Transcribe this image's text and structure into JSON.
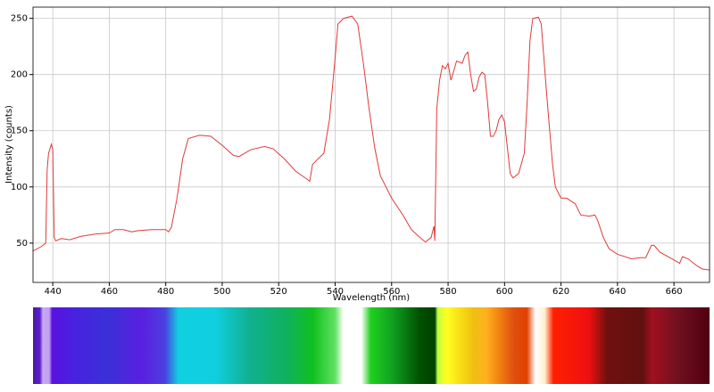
{
  "chart_data": {
    "type": "line",
    "xlabel": "Wavelength (nm)",
    "ylabel": "Intensity (counts)",
    "x": [
      433,
      436,
      437.5,
      438,
      438.5,
      439.5,
      440,
      440.5,
      441,
      443,
      446,
      450,
      455,
      460,
      462,
      465,
      468,
      470,
      475,
      480,
      481,
      482,
      484,
      486,
      488,
      492,
      496,
      500,
      504,
      506,
      510,
      515,
      518,
      522,
      526,
      530,
      531,
      532,
      534,
      536,
      538,
      540,
      541,
      543,
      546,
      548,
      550,
      552,
      554,
      556,
      560,
      564,
      567,
      570,
      572,
      574,
      575,
      575.3,
      576,
      577,
      578,
      579,
      580,
      581,
      582,
      583,
      585,
      586,
      587,
      588,
      589,
      590,
      591,
      592,
      593,
      594,
      595,
      596,
      597,
      598,
      599,
      600,
      601,
      602,
      603,
      605,
      607,
      608,
      609,
      610,
      612,
      613,
      615,
      617,
      618,
      620,
      622,
      625,
      627,
      630,
      632,
      633,
      635,
      637,
      640,
      645,
      648,
      650,
      652,
      653,
      655,
      660,
      662,
      663,
      665,
      668,
      670,
      672.6
    ],
    "values": [
      43,
      47,
      50,
      115,
      130,
      138,
      133,
      55,
      52,
      54,
      53,
      56,
      58,
      59,
      62,
      62,
      60,
      61,
      62,
      62,
      60,
      64,
      90,
      125,
      143,
      146,
      145,
      137,
      128,
      127,
      133,
      136,
      134,
      125,
      114,
      107,
      105,
      120,
      125,
      130,
      160,
      215,
      245,
      250,
      252,
      245,
      210,
      170,
      135,
      110,
      90,
      75,
      62,
      55,
      51,
      55,
      65,
      52,
      170,
      195,
      208,
      205,
      210,
      195,
      203,
      212,
      210,
      217,
      220,
      200,
      185,
      187,
      198,
      202,
      200,
      175,
      145,
      145,
      150,
      160,
      164,
      158,
      135,
      112,
      108,
      112,
      130,
      175,
      230,
      250,
      251,
      245,
      180,
      120,
      100,
      90,
      90,
      85,
      75,
      74,
      75,
      70,
      55,
      45,
      40,
      36,
      37,
      37,
      48,
      48,
      42,
      35,
      32,
      38,
      36,
      30,
      27,
      26
    ],
    "color": "#e03a3a",
    "xlim": [
      433,
      672.6
    ],
    "ylim": [
      15,
      260
    ],
    "xticks": [
      440,
      460,
      480,
      500,
      520,
      540,
      560,
      580,
      600,
      620,
      640,
      660
    ],
    "yticks": [
      50,
      100,
      150,
      200,
      250
    ],
    "grid": true
  }
}
